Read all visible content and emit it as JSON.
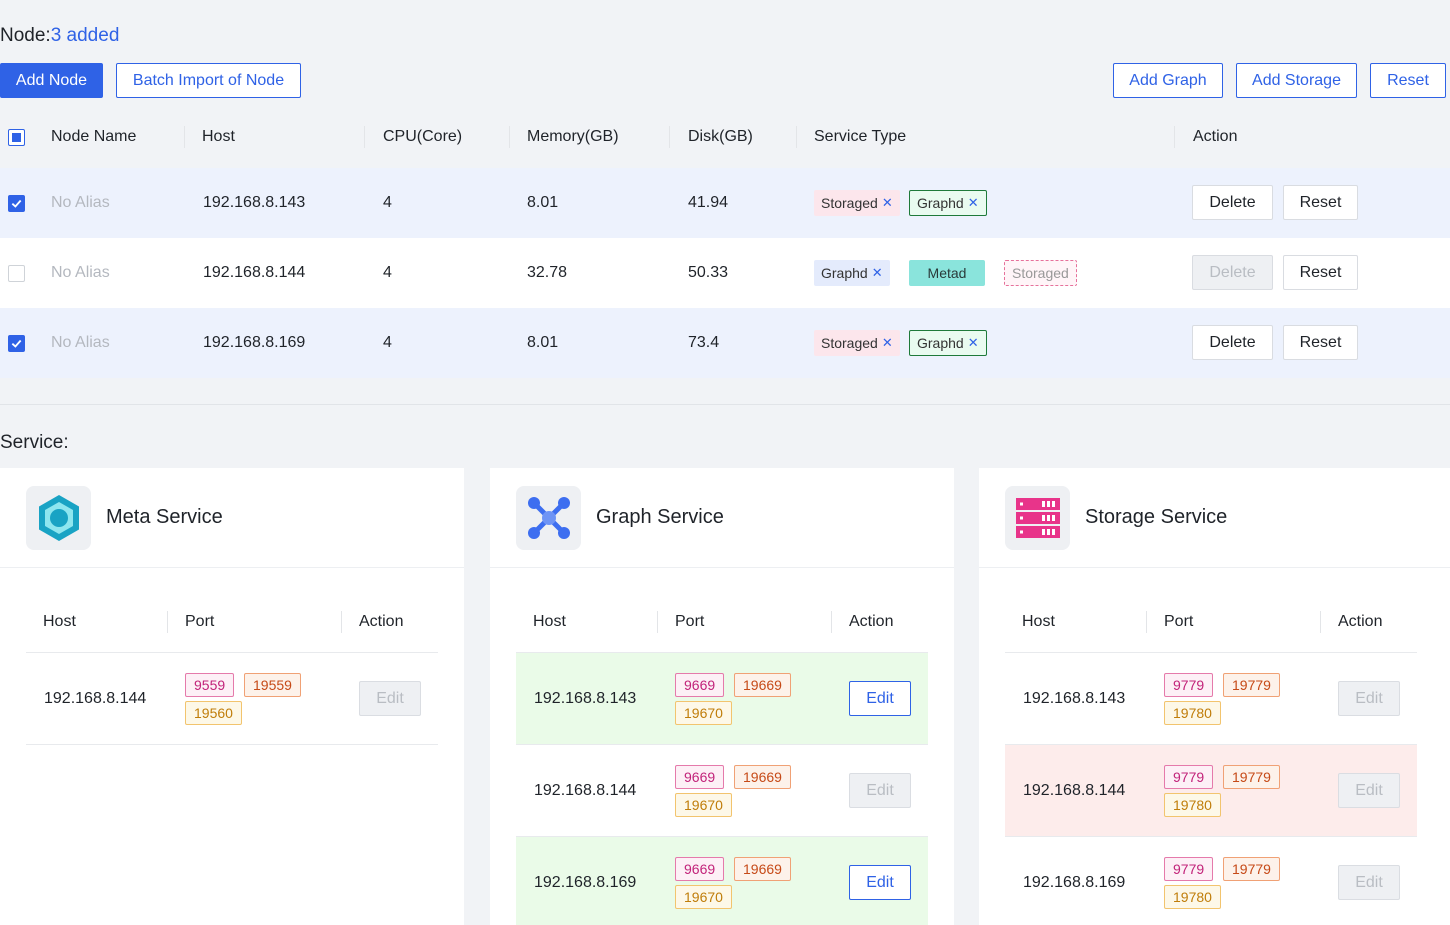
{
  "node": {
    "label": "Node:",
    "added": "3 added"
  },
  "toolbar": {
    "add_node": "Add Node",
    "batch_import": "Batch Import of Node",
    "add_graph": "Add Graph",
    "add_storage": "Add Storage",
    "reset": "Reset"
  },
  "table": {
    "headers": [
      "Node Name",
      "Host",
      "CPU(Core)",
      "Memory(GB)",
      "Disk(GB)",
      "Service Type",
      "Action"
    ],
    "rows": [
      {
        "checked": true,
        "name": "No Alias",
        "host": "192.168.8.143",
        "cpu": "4",
        "memory": "8.01",
        "disk": "41.94",
        "services": [
          {
            "label": "Storaged",
            "style": "storaged"
          },
          {
            "label": "Graphd",
            "style": "graphd"
          }
        ],
        "delete": "Delete",
        "reset": "Reset",
        "delete_disabled": false
      },
      {
        "checked": false,
        "name": "No Alias",
        "host": "192.168.8.144",
        "cpu": "4",
        "memory": "32.78",
        "disk": "50.33",
        "services": [
          {
            "label": "Graphd",
            "style": "graphd-blue"
          },
          {
            "label": "Metad",
            "style": "metad"
          },
          {
            "label": "Storaged",
            "style": "dashed"
          }
        ],
        "delete": "Delete",
        "reset": "Reset",
        "delete_disabled": true
      },
      {
        "checked": true,
        "name": "No Alias",
        "host": "192.168.8.169",
        "cpu": "4",
        "memory": "8.01",
        "disk": "73.4",
        "services": [
          {
            "label": "Storaged",
            "style": "storaged"
          },
          {
            "label": "Graphd",
            "style": "graphd"
          }
        ],
        "delete": "Delete",
        "reset": "Reset",
        "delete_disabled": false
      }
    ]
  },
  "service": {
    "title": "Service:",
    "columns": {
      "host": "Host",
      "port": "Port",
      "action": "Action"
    },
    "edit": "Edit",
    "cards": [
      {
        "name": "Meta Service",
        "icon": "hexagon-icon",
        "rows": [
          {
            "host": "192.168.8.144",
            "ports": [
              "9559",
              "19559",
              "19560"
            ],
            "highlight": "none",
            "edit_enabled": false
          }
        ]
      },
      {
        "name": "Graph Service",
        "icon": "graph-network-icon",
        "rows": [
          {
            "host": "192.168.8.143",
            "ports": [
              "9669",
              "19669",
              "19670"
            ],
            "highlight": "green",
            "edit_enabled": true
          },
          {
            "host": "192.168.8.144",
            "ports": [
              "9669",
              "19669",
              "19670"
            ],
            "highlight": "none",
            "edit_enabled": false
          },
          {
            "host": "192.168.8.169",
            "ports": [
              "9669",
              "19669",
              "19670"
            ],
            "highlight": "green",
            "edit_enabled": true
          }
        ]
      },
      {
        "name": "Storage Service",
        "icon": "server-rack-icon",
        "rows": [
          {
            "host": "192.168.8.143",
            "ports": [
              "9779",
              "19779",
              "19780"
            ],
            "highlight": "none",
            "edit_enabled": false
          },
          {
            "host": "192.168.8.144",
            "ports": [
              "9779",
              "19779",
              "19780"
            ],
            "highlight": "red",
            "edit_enabled": false
          },
          {
            "host": "192.168.8.169",
            "ports": [
              "9779",
              "19779",
              "19780"
            ],
            "highlight": "none",
            "edit_enabled": false
          }
        ]
      }
    ]
  },
  "colors": {
    "accent": "#2f62e6",
    "meta": "#19a3c4",
    "graph": "#3d6ef0",
    "storage": "#e8348a"
  }
}
